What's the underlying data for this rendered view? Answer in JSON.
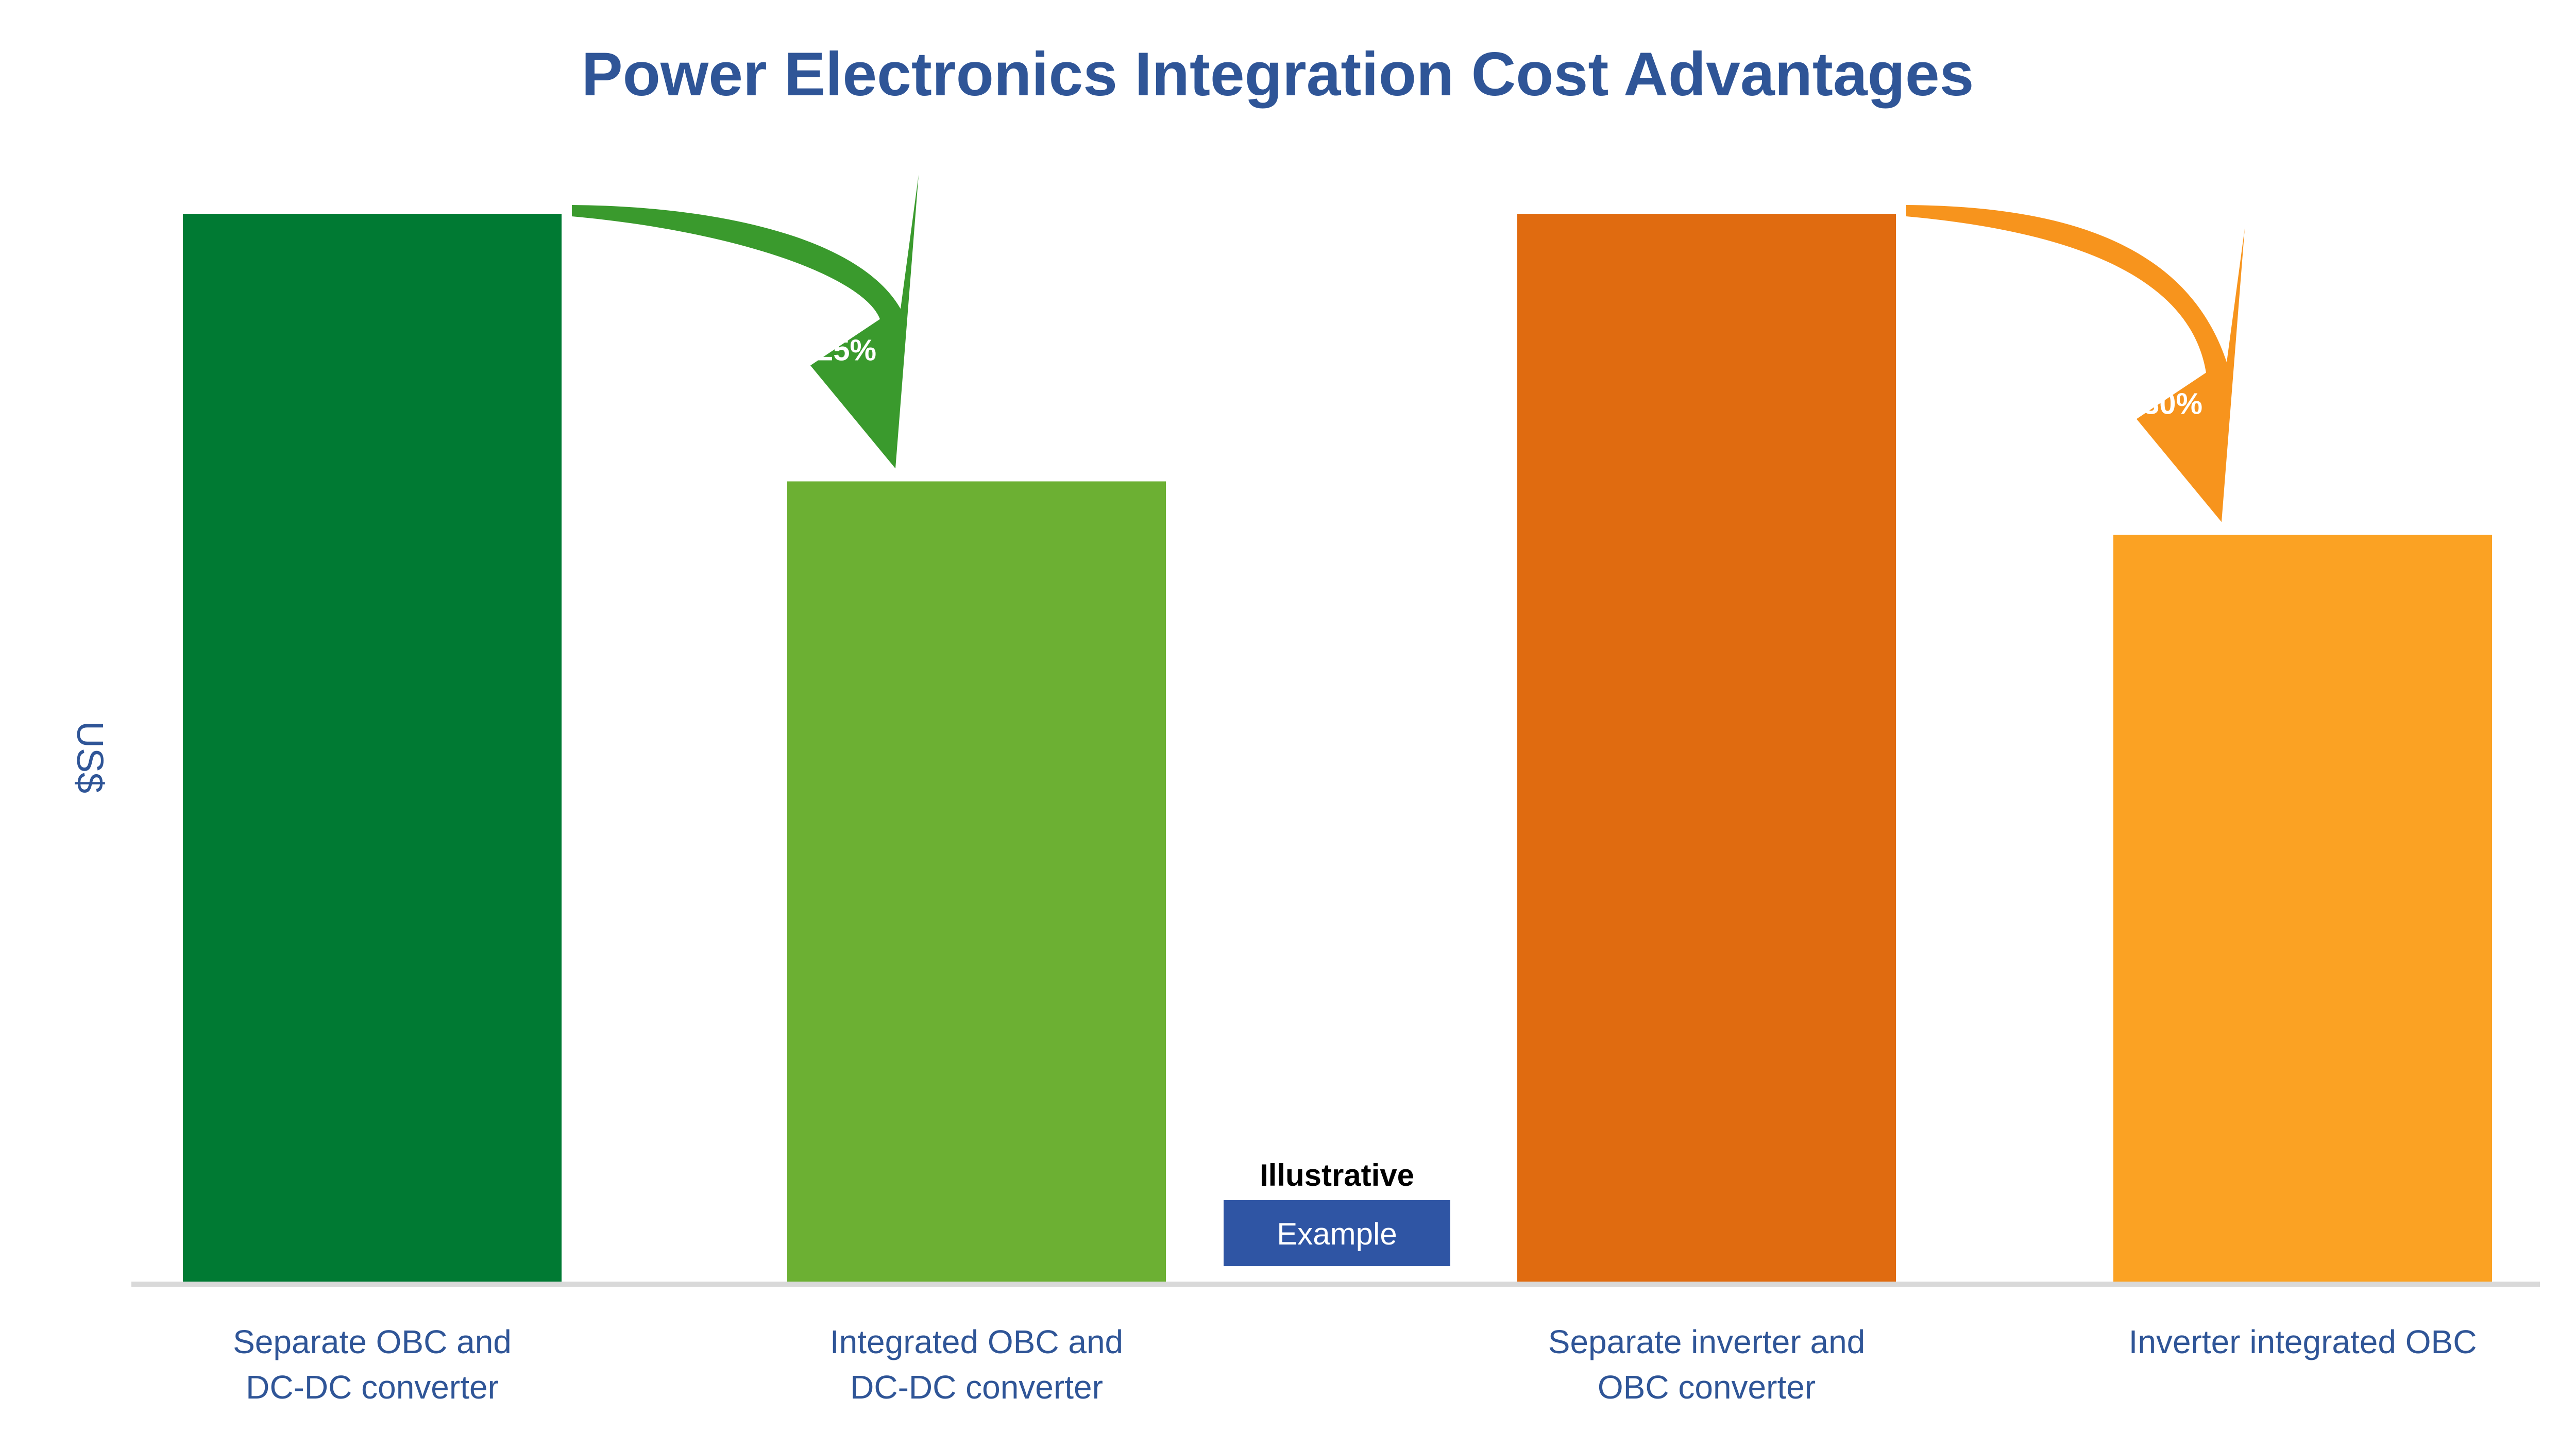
{
  "chart_data": {
    "type": "bar",
    "title": "Power Electronics Integration Cost Advantages",
    "ylabel": "US$",
    "xlabel": "",
    "ylim": [
      0,
      100
    ],
    "grid": false,
    "categories": [
      "Separate OBC and DC-DC converter",
      "Integrated OBC and DC-DC converter",
      "Separate inverter and OBC converter",
      "Inverter integrated OBC"
    ],
    "values": [
      100,
      75,
      100,
      70
    ],
    "colors": [
      "#007a33",
      "#6cb033",
      "#e06b10",
      "#fba223"
    ],
    "arrow_colors": [
      "#3a9a2d",
      "#f7941d"
    ],
    "annotations": [
      {
        "from": 0,
        "to": 1,
        "text": "25%"
      },
      {
        "from": 2,
        "to": 3,
        "text": "30%"
      }
    ],
    "illustrative_label": "Illustrative",
    "illustrative_badge": "Example",
    "illustrative_badge_color": "#2f55a4"
  }
}
